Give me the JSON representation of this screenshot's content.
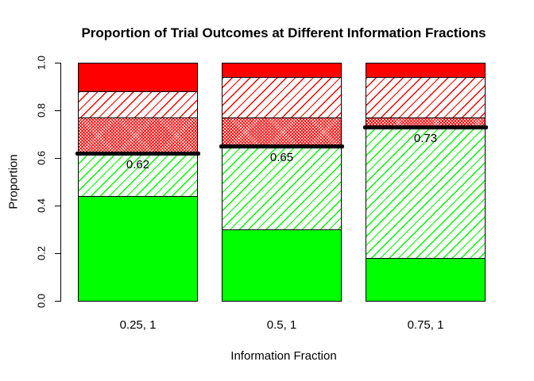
{
  "chart_data": {
    "type": "bar",
    "stacked": true,
    "title": "Proportion of Trial Outcomes at Different Information Fractions",
    "xlabel": "Information Fraction",
    "ylabel": "Proportion",
    "ylim": [
      0.0,
      1.0
    ],
    "ytick_labels": [
      "0.0",
      "0.2",
      "0.4",
      "0.6",
      "0.8",
      "1.0"
    ],
    "grid": false,
    "legend": "none",
    "categories": [
      "0.25, 1",
      "0.5, 1",
      "0.75, 1"
    ],
    "series": [
      {
        "name": "green-solid",
        "values": [
          0.44,
          0.3,
          0.18
        ]
      },
      {
        "name": "green-hatched",
        "values": [
          0.18,
          0.35,
          0.55
        ]
      },
      {
        "name": "red-dense-hatched",
        "values": [
          0.15,
          0.12,
          0.04
        ]
      },
      {
        "name": "red-hatched",
        "values": [
          0.11,
          0.17,
          0.17
        ]
      },
      {
        "name": "red-solid",
        "values": [
          0.12,
          0.06,
          0.06
        ]
      }
    ],
    "reference_lines": {
      "values": [
        0.62,
        0.65,
        0.73
      ],
      "labels": [
        "0.62",
        "0.65",
        "0.73"
      ]
    }
  },
  "colors": {
    "green": "#00ff00",
    "red": "#ff0000",
    "reference_line": "#000000",
    "text": "#000000",
    "background": "#ffffff"
  }
}
